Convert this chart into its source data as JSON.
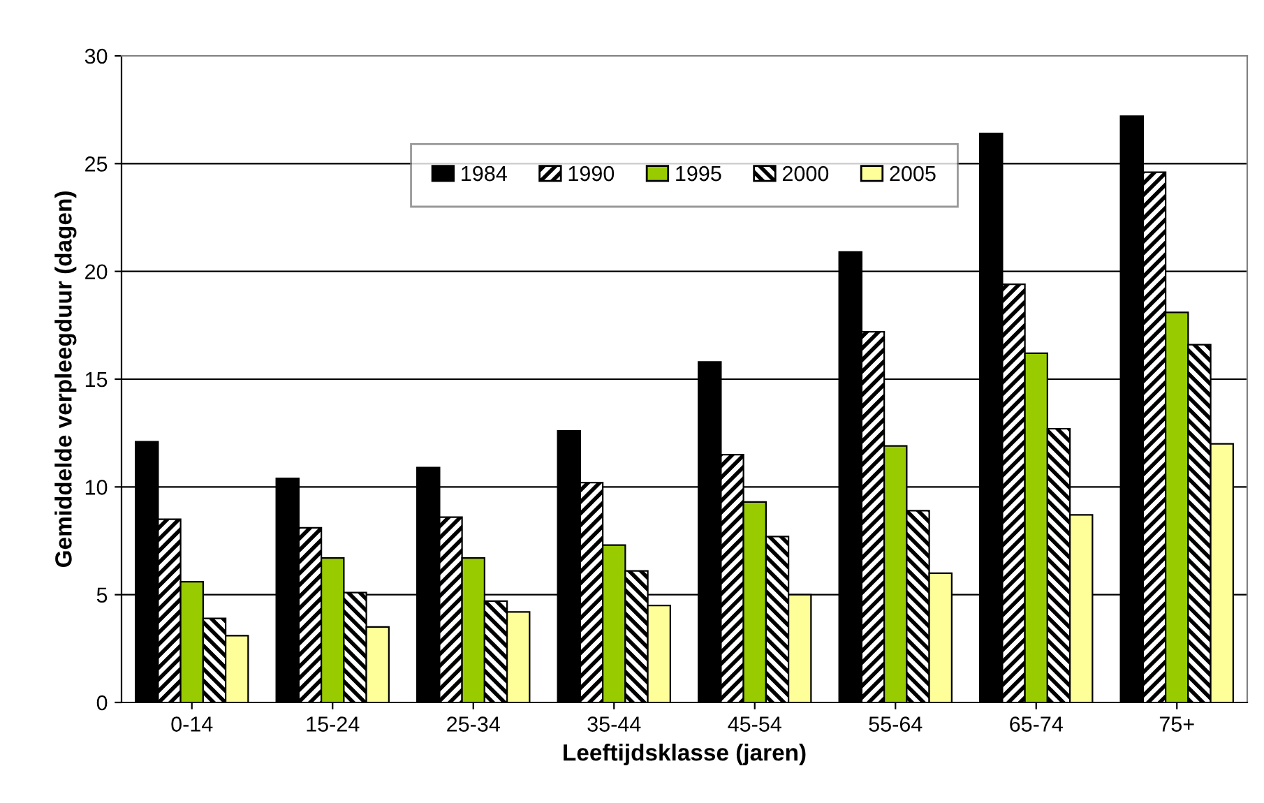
{
  "chart_data": {
    "type": "bar",
    "xlabel": "Leeftijdsklasse (jaren)",
    "ylabel": "Gemiddelde verpleegduur (dagen)",
    "categories": [
      "0-14",
      "15-24",
      "25-34",
      "35-44",
      "45-54",
      "55-64",
      "65-74",
      "75+"
    ],
    "series": [
      {
        "name": "1984",
        "color": "#000000",
        "values": [
          12.1,
          10.4,
          10.9,
          12.6,
          15.8,
          20.9,
          26.4,
          27.2
        ]
      },
      {
        "name": "1990",
        "color": "#000000",
        "values": [
          8.5,
          8.1,
          8.6,
          10.2,
          11.5,
          17.2,
          19.4,
          24.6
        ]
      },
      {
        "name": "1995",
        "color": "#99cc00",
        "values": [
          5.6,
          6.7,
          6.7,
          7.3,
          9.3,
          11.9,
          16.2,
          18.1
        ]
      },
      {
        "name": "2000",
        "color": "#000000",
        "values": [
          3.9,
          5.1,
          4.7,
          6.1,
          7.7,
          8.9,
          12.7,
          16.6
        ]
      },
      {
        "name": "2005",
        "color": "#ffff99",
        "values": [
          3.1,
          3.5,
          4.2,
          4.5,
          5.0,
          6.0,
          8.7,
          12.0
        ]
      }
    ],
    "ylim": [
      0,
      30
    ],
    "yticks": [
      0,
      5,
      10,
      15,
      20,
      25,
      30
    ],
    "grid": "y",
    "legend": "top"
  }
}
